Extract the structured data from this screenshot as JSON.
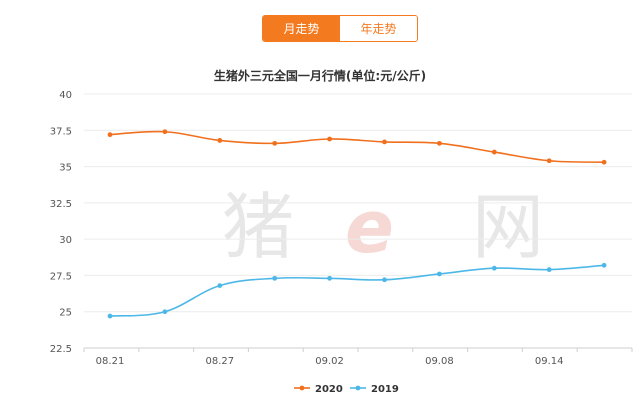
{
  "tabs": [
    {
      "label": "月走势",
      "active": true
    },
    {
      "label": "年走势",
      "active": false
    }
  ],
  "watermark": {
    "left": "猪",
    "middle": "e",
    "right": "网"
  },
  "colors": {
    "accent": "#f47a20",
    "series_2020": "#f0701e",
    "series_2019": "#4db8e8"
  },
  "chart_data": {
    "type": "line",
    "title": "生猪外三元全国一月行情(单位:元/公斤)",
    "x_tick_labels": [
      "08.21",
      "08.27",
      "09.02",
      "09.08",
      "09.14"
    ],
    "x": [
      "08.21",
      "08.24",
      "08.27",
      "08.30",
      "09.02",
      "09.05",
      "09.08",
      "09.11",
      "09.14",
      "09.17"
    ],
    "ylim": [
      22.5,
      40
    ],
    "yticks": [
      "22.5",
      "25",
      "27.5",
      "30",
      "32.5",
      "35",
      "37.5",
      "40"
    ],
    "grid": true,
    "legend_position": "bottom",
    "series": [
      {
        "name": "2020",
        "values": [
          37.2,
          37.4,
          36.8,
          36.6,
          36.9,
          36.7,
          36.6,
          36.0,
          35.4,
          35.3
        ]
      },
      {
        "name": "2019",
        "values": [
          24.7,
          25.0,
          26.8,
          27.3,
          27.3,
          27.2,
          27.6,
          28.0,
          27.9,
          28.2
        ]
      }
    ]
  }
}
